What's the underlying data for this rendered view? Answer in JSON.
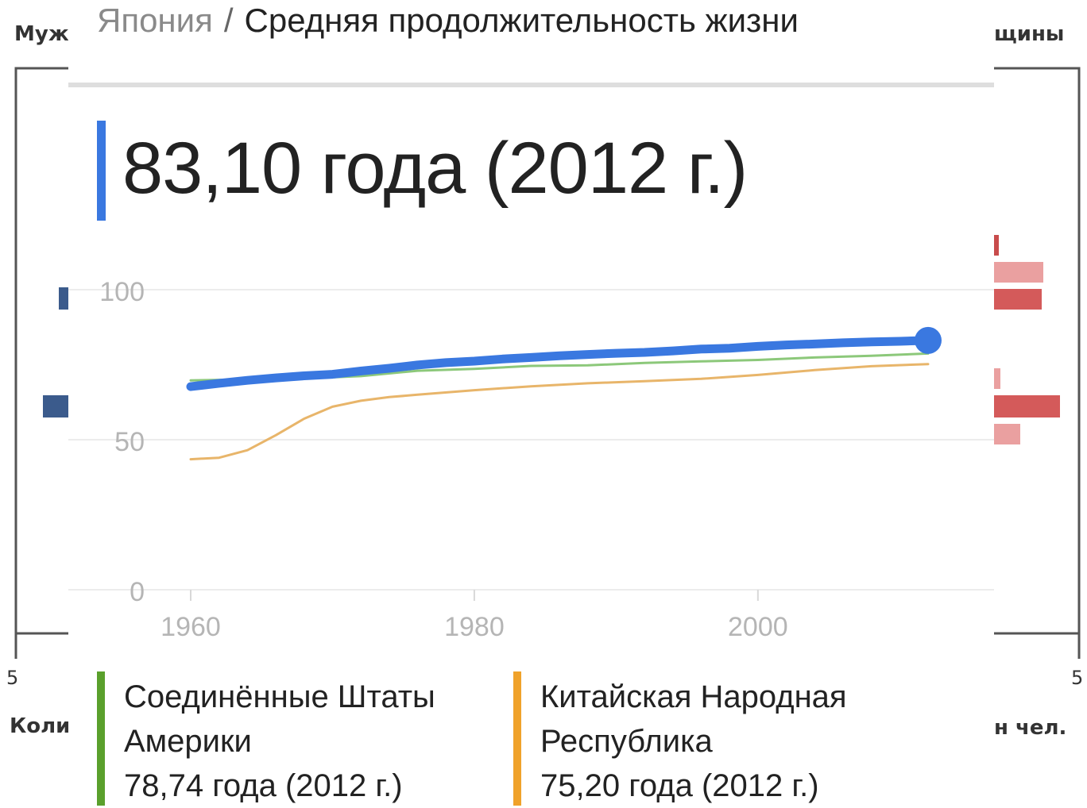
{
  "background": {
    "label_left_top": "Муж",
    "label_right_top": "щины",
    "label_left_bottom": "Коли",
    "label_right_bottom": "н чел.",
    "tick_left": "5",
    "tick_right": "5"
  },
  "breadcrumb": {
    "country": "Япония",
    "separator": "/",
    "metric": "Средняя продолжительность жизни"
  },
  "headline": {
    "value_text": "83,10 года (2012 г.)",
    "accent_color": "#3a78e0"
  },
  "chart_data": {
    "type": "line",
    "x_ticks": [
      "1960",
      "1980",
      "2000"
    ],
    "y_ticks": [
      "0",
      "50",
      "100"
    ],
    "xlim": [
      1960,
      2012
    ],
    "ylim": [
      0,
      100
    ],
    "grid": true,
    "series": [
      {
        "name": "Япония",
        "color": "#3a78e0",
        "emphasis": true,
        "x": [
          1960,
          1962,
          1964,
          1966,
          1968,
          1970,
          1972,
          1974,
          1976,
          1978,
          1980,
          1982,
          1984,
          1986,
          1988,
          1990,
          1992,
          1994,
          1996,
          1998,
          2000,
          2002,
          2004,
          2006,
          2008,
          2010,
          2012
        ],
        "y": [
          67.7,
          68.8,
          69.8,
          70.6,
          71.3,
          71.8,
          72.9,
          73.8,
          74.9,
          75.7,
          76.2,
          76.9,
          77.4,
          78.0,
          78.4,
          78.8,
          79.1,
          79.6,
          80.2,
          80.5,
          81.1,
          81.6,
          81.9,
          82.3,
          82.6,
          82.8,
          83.1
        ]
      },
      {
        "name": "Соединённые Штаты Америки",
        "color": "#8cc87a",
        "x": [
          1960,
          1964,
          1968,
          1972,
          1976,
          1980,
          1984,
          1988,
          1992,
          1996,
          2000,
          2004,
          2008,
          2012
        ],
        "y": [
          69.8,
          70.1,
          70.4,
          71.2,
          73.0,
          73.6,
          74.6,
          74.8,
          75.6,
          76.1,
          76.6,
          77.4,
          78.0,
          78.74
        ]
      },
      {
        "name": "Китайская Народная Республика",
        "color": "#e8b56a",
        "x": [
          1960,
          1962,
          1964,
          1966,
          1968,
          1970,
          1972,
          1974,
          1976,
          1980,
          1984,
          1988,
          1992,
          1996,
          2000,
          2004,
          2008,
          2012
        ],
        "y": [
          43.5,
          44.0,
          46.5,
          51.5,
          57.0,
          61.0,
          63.0,
          64.2,
          65.0,
          66.5,
          67.8,
          68.8,
          69.5,
          70.3,
          71.6,
          73.2,
          74.5,
          75.2
        ]
      }
    ]
  },
  "legend": [
    {
      "name": "Соединённые Штаты Америки",
      "value": "78,74 года (2012 г.)",
      "color": "#5aa02c"
    },
    {
      "name": "Китайская Народная Республика",
      "value": "75,20 года (2012 г.)",
      "color": "#f0a22a"
    }
  ]
}
